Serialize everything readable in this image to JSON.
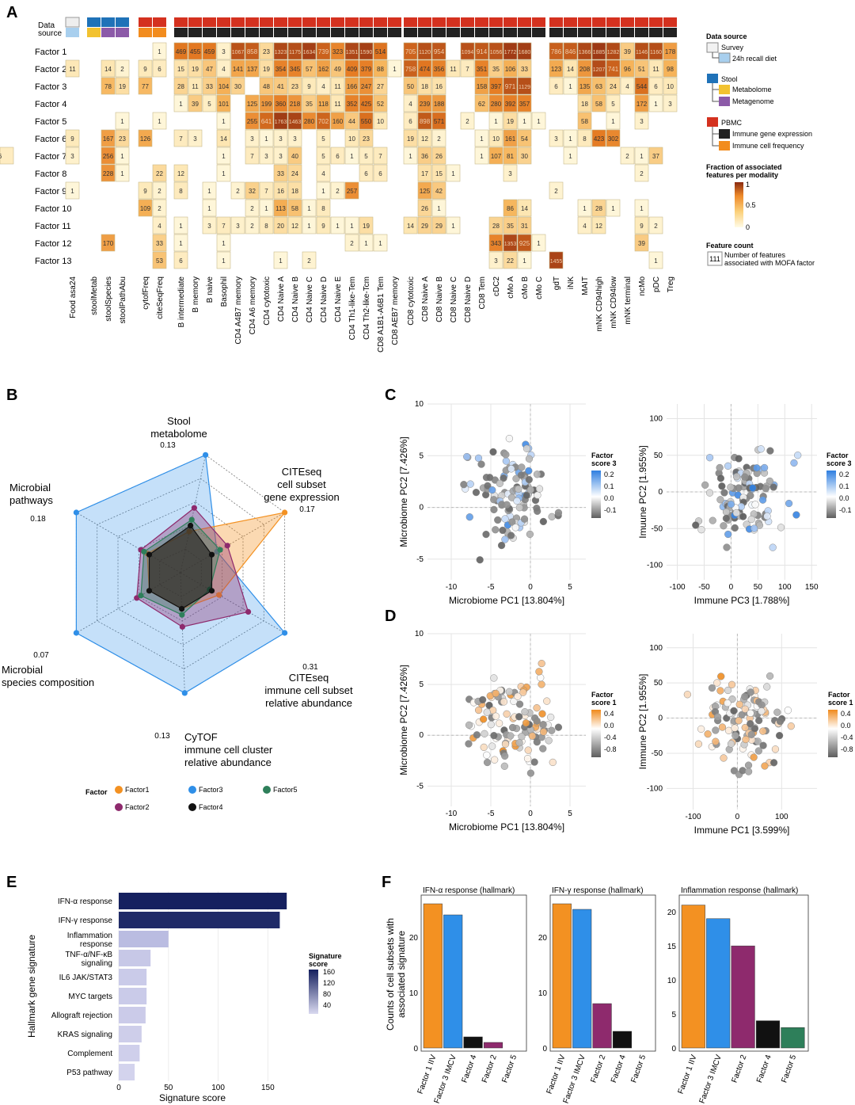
{
  "panels": {
    "a": "A",
    "b": "B",
    "c": "C",
    "d": "D",
    "e": "E",
    "f": "F"
  },
  "colors": {
    "survey": "#e8e8e8",
    "recall": "#a8cfee",
    "stool": "#1f72b8",
    "metabolome": "#f2c230",
    "metagenome": "#8c5aa8",
    "pbmc": "#d4311f",
    "gene": "#222222",
    "freq": "#f28c1e",
    "factor1": "#f39122",
    "factor2": "#8e2a6d",
    "factor3": "#2f8fe8",
    "factor4": "#111111",
    "factor5": "#2e7f5a"
  },
  "panelA": {
    "track_label_data": "Data",
    "track_label_source": "source",
    "factors": [
      "Factor 1",
      "Factor 2",
      "Factor 3",
      "Factor 4",
      "Factor 5",
      "Factor 6",
      "Factor 7",
      "Factor 8",
      "Factor 9",
      "Factor 10",
      "Factor 11",
      "Factor 12",
      "Factor 13"
    ],
    "columns": [
      "Food asa24",
      "stoolMetab",
      "stoolSpecies",
      "stoolPathAbu",
      "cytofFreq",
      "citeSeqFreq",
      "B intermediate",
      "B memory",
      "B naive",
      "Basophil",
      "CD4 A4B7 memory",
      "CD4 A6 memory",
      "CD4 cytotoxic",
      "CD4 Naive A",
      "CD4 Naive B",
      "CD4 Naive C",
      "CD4 Naive D",
      "CD4 Naive E",
      "CD4 Th1-like-Tem",
      "CD4 Th2-like-Tcm",
      "CD8 A1B1-A6B1 Tem",
      "CD8 AEB7 memory",
      "CD8 cytotoxic",
      "CD8 Naive A",
      "CD8 Naive B",
      "CD8 Naive C",
      "CD8 Naive D",
      "CD8 Tem",
      "cDC2",
      "cMo A",
      "cMo B",
      "cMo C",
      "gdT",
      "iNK",
      "MAIT",
      "mNK CD94high",
      "mNK CD94low",
      "mNK terminal",
      "ncMo",
      "pDC",
      "Treg"
    ],
    "rows": [
      [
        null,
        null,
        null,
        null,
        null,
        1,
        469,
        455,
        459,
        3,
        1067,
        858,
        23,
        1323,
        1175,
        1634,
        739,
        323,
        1351,
        1590,
        514,
        null,
        705,
        1120,
        954,
        null,
        1094,
        914,
        1056,
        1772,
        1680,
        null,
        786,
        846,
        1366,
        1885,
        1282,
        39,
        1146,
        1160,
        178
      ],
      [
        11,
        null,
        14,
        2,
        9,
        6,
        15,
        19,
        47,
        4,
        141,
        137,
        19,
        354,
        345,
        57,
        162,
        49,
        409,
        379,
        88,
        1,
        758,
        474,
        356,
        11,
        7,
        351,
        35,
        106,
        33,
        null,
        123,
        14,
        208,
        1207,
        741,
        96,
        51,
        11,
        98
      ],
      [
        null,
        null,
        78,
        19,
        77,
        null,
        28,
        11,
        33,
        104,
        30,
        null,
        48,
        41,
        23,
        9,
        4,
        11,
        166,
        247,
        27,
        null,
        50,
        18,
        16,
        null,
        null,
        158,
        397,
        971,
        1129,
        null,
        6,
        1,
        135,
        63,
        24,
        4,
        544,
        6,
        10
      ],
      [
        null,
        null,
        null,
        null,
        null,
        null,
        1,
        39,
        5,
        101,
        null,
        125,
        199,
        360,
        218,
        35,
        118,
        11,
        352,
        425,
        52,
        null,
        4,
        239,
        188,
        null,
        null,
        62,
        280,
        392,
        357,
        null,
        null,
        null,
        18,
        58,
        5,
        null,
        172,
        1,
        3
      ],
      [
        null,
        null,
        null,
        1,
        null,
        1,
        null,
        null,
        null,
        1,
        null,
        255,
        641,
        1763,
        1463,
        280,
        702,
        160,
        44,
        550,
        10,
        null,
        6,
        898,
        571,
        null,
        2,
        null,
        1,
        19,
        1,
        1,
        null,
        null,
        58,
        null,
        1,
        null,
        3,
        null,
        null
      ],
      [
        9,
        null,
        167,
        23,
        126,
        null,
        7,
        3,
        null,
        14,
        null,
        3,
        1,
        3,
        3,
        null,
        5,
        null,
        10,
        23,
        null,
        null,
        19,
        12,
        2,
        null,
        null,
        1,
        10,
        161,
        54,
        null,
        3,
        1,
        8,
        423,
        302,
        null,
        null,
        null,
        null
      ],
      [
        3,
        null,
        256,
        1,
        null,
        null,
        null,
        null,
        null,
        1,
        null,
        7,
        3,
        3,
        40,
        null,
        5,
        6,
        1,
        5,
        7,
        null,
        1,
        36,
        26,
        null,
        null,
        1,
        107,
        81,
        30,
        null,
        null,
        1,
        null,
        null,
        null,
        2,
        1,
        37,
        null,
        6
      ],
      [
        null,
        null,
        228,
        1,
        null,
        22,
        12,
        null,
        null,
        1,
        null,
        null,
        null,
        33,
        24,
        null,
        4,
        null,
        null,
        6,
        6,
        null,
        null,
        17,
        15,
        1,
        null,
        null,
        null,
        3,
        null,
        null,
        null,
        null,
        null,
        null,
        null,
        null,
        2,
        null,
        null
      ],
      [
        1,
        null,
        null,
        null,
        9,
        2,
        8,
        null,
        1,
        null,
        2,
        32,
        7,
        16,
        18,
        null,
        1,
        2,
        257,
        null,
        null,
        null,
        null,
        125,
        42,
        null,
        null,
        null,
        null,
        null,
        null,
        null,
        2,
        null,
        null,
        null,
        null,
        null,
        null,
        null,
        null
      ],
      [
        null,
        null,
        null,
        null,
        109,
        2,
        null,
        null,
        1,
        null,
        null,
        2,
        1,
        113,
        58,
        1,
        8,
        null,
        null,
        null,
        null,
        null,
        null,
        26,
        1,
        null,
        null,
        null,
        null,
        86,
        14,
        null,
        null,
        null,
        1,
        28,
        1,
        null,
        1,
        null,
        null
      ],
      [
        null,
        null,
        null,
        null,
        null,
        4,
        1,
        null,
        3,
        7,
        3,
        2,
        8,
        20,
        12,
        1,
        9,
        1,
        1,
        19,
        null,
        null,
        14,
        29,
        29,
        1,
        null,
        null,
        28,
        35,
        31,
        null,
        null,
        null,
        4,
        12,
        null,
        null,
        9,
        2,
        null
      ],
      [
        null,
        null,
        170,
        null,
        null,
        33,
        1,
        null,
        null,
        1,
        null,
        null,
        null,
        null,
        null,
        null,
        null,
        null,
        2,
        1,
        1,
        null,
        null,
        null,
        null,
        null,
        null,
        null,
        343,
        1353,
        925,
        1,
        null,
        null,
        null,
        null,
        null,
        null,
        39,
        null,
        null
      ],
      [
        null,
        null,
        null,
        null,
        null,
        53,
        6,
        null,
        null,
        1,
        null,
        null,
        null,
        1,
        null,
        2,
        null,
        null,
        null,
        null,
        null,
        null,
        null,
        null,
        null,
        null,
        null,
        null,
        3,
        22,
        1,
        null,
        1455,
        null,
        null,
        null,
        null,
        null,
        null,
        1,
        null
      ]
    ],
    "legend": {
      "data_source_title": "Data source",
      "survey": "Survey",
      "recall": "24h recall diet",
      "stool": "Stool",
      "metabolome": "Metabolome",
      "metagenome": "Metagenome",
      "pbmc": "PBMC",
      "gene_expr": "Immune gene expression",
      "cell_freq": "Immune cell frequency",
      "fraction_title_1": "Fraction of associated",
      "fraction_title_2": "features per modality",
      "fraction_ticks": [
        "1",
        "0.5",
        "0"
      ],
      "count_title": "Feature count",
      "count_example": "111",
      "count_desc_1": "Number of features",
      "count_desc_2": "associated with MOFA factor"
    }
  },
  "panelB": {
    "axes": [
      {
        "label": [
          "Stool",
          "metabolome"
        ],
        "max": "0.13"
      },
      {
        "label": [
          "CITEseq",
          "cell subset",
          "gene expression"
        ],
        "max": "0.17"
      },
      {
        "label": [
          "CITEseq",
          "immune cell subset",
          "relative abundance"
        ],
        "max": "0.31"
      },
      {
        "label": [
          "CyTOF",
          "immune cell cluster",
          "relative abundance"
        ],
        "max": "0.13"
      },
      {
        "label": [
          "Microbial",
          "species composition"
        ],
        "max": "0.07"
      },
      {
        "label": [
          "Microbial",
          "pathways"
        ],
        "max": "0.18"
      }
    ],
    "legend_title": "Factor",
    "legend": [
      "Factor1",
      "Factor2",
      "Factor3",
      "Factor4",
      "Factor5"
    ]
  },
  "chart_data": [
    {
      "type": "heatmap",
      "title": "",
      "note": "Feature count per factor and data modality (panel A); values in panelA.rows"
    },
    {
      "type": "radar",
      "axes": [
        "Stool metabolome",
        "CITEseq cell subset gene expression",
        "CITEseq immune cell subset relative abundance",
        "CyTOF immune cell cluster relative abundance",
        "Microbial species composition",
        "Microbial pathways"
      ],
      "axis_max": [
        0.13,
        0.17,
        0.31,
        0.13,
        0.07,
        0.18
      ],
      "series": [
        {
          "name": "Factor1",
          "values": [
            0.35,
            1.0,
            0.37,
            0.3,
            0.3,
            0.32
          ]
        },
        {
          "name": "Factor2",
          "values": [
            0.55,
            0.45,
            0.65,
            0.45,
            0.42,
            0.38
          ]
        },
        {
          "name": "Factor3",
          "values": [
            1.0,
            0.35,
            1.0,
            1.0,
            1.0,
            1.0
          ]
        },
        {
          "name": "Factor4",
          "values": [
            0.4,
            0.3,
            0.3,
            0.3,
            0.3,
            0.3
          ]
        },
        {
          "name": "Factor5",
          "values": [
            0.45,
            0.38,
            0.28,
            0.35,
            0.38,
            0.35
          ]
        }
      ]
    },
    {
      "type": "scatter",
      "panel": "C",
      "plots": [
        {
          "xlabel": "Microbiome PC1 [13.804%]",
          "ylabel": "Microbiome PC2 [7.426%]",
          "xlim": [
            -13,
            7
          ],
          "ylim": [
            -7,
            10
          ],
          "xticks": [
            "-10",
            "-5",
            "0",
            "5"
          ],
          "yticks": [
            "-5",
            "0",
            "5",
            "10"
          ]
        },
        {
          "xlabel": "Immune PC3 [1.788%]",
          "ylabel": "Imuune PC2 [1.955%]",
          "xlim": [
            -120,
            160
          ],
          "ylim": [
            -120,
            120
          ],
          "xticks": [
            "-100",
            "-50",
            "0",
            "50",
            "100",
            "150"
          ],
          "yticks": [
            "-100",
            "-50",
            "0",
            "50",
            "100"
          ]
        }
      ],
      "legend_title": [
        "Factor",
        "score 3"
      ],
      "legend_ticks": [
        "0.2",
        "0.1",
        "0.0",
        "-0.1"
      ]
    },
    {
      "type": "scatter",
      "panel": "D",
      "plots": [
        {
          "xlabel": "Microbiome PC1 [13.804%]",
          "ylabel": "Microbiome PC2 [7.426%]",
          "xlim": [
            -13,
            7
          ],
          "ylim": [
            -7,
            10
          ],
          "xticks": [
            "-10",
            "-5",
            "0",
            "5"
          ],
          "yticks": [
            "-5",
            "0",
            "5",
            "10"
          ]
        },
        {
          "xlabel": "Immune PC1 [3.599%]",
          "ylabel": "Immune PC2 [1.955%]",
          "xlim": [
            -160,
            180
          ],
          "ylim": [
            -130,
            120
          ],
          "xticks": [
            "-100",
            "0",
            "100"
          ],
          "yticks": [
            "-100",
            "-50",
            "0",
            "50",
            "100"
          ]
        }
      ],
      "legend_title": [
        "Factor",
        "score 1"
      ],
      "legend_ticks": [
        "0.4",
        "0.0",
        "-0.4",
        "-0.8"
      ]
    },
    {
      "type": "bar",
      "panel": "E",
      "orientation": "horizontal",
      "categories": [
        [
          "IFN-α response"
        ],
        [
          "IFN-γ response"
        ],
        [
          "Inflammation",
          "response"
        ],
        [
          "TNF-α/NF-κB",
          "signaling"
        ],
        [
          "IL6 JAK/STAT3"
        ],
        [
          "MYC targets"
        ],
        [
          "Allograft rejection"
        ],
        [
          "KRAS signaling"
        ],
        [
          "Complement"
        ],
        [
          "P53 pathway"
        ]
      ],
      "values": [
        169,
        162,
        50,
        32,
        28,
        28,
        27,
        23,
        21,
        16
      ],
      "xlabel": "Signature score",
      "ylabel": "Hallmark gene signature",
      "xlim": [
        0,
        180
      ],
      "xticks": [
        "0",
        "50",
        "100",
        "150"
      ],
      "legend_title": [
        "Signature",
        "score"
      ],
      "legend_ticks": [
        "160",
        "120",
        "80",
        "40"
      ]
    },
    {
      "type": "bar",
      "panel": "F",
      "ylabel": [
        "Counts of cell subsets with",
        "associated signature"
      ],
      "subplots": [
        {
          "title": "IFN-α response (hallmark)",
          "categories": [
            "Factor 1 IIV",
            "Factor 3 IMCV",
            "Factor 4",
            "Factor 2",
            "Factor 5"
          ],
          "values": [
            26,
            24,
            2,
            1,
            0
          ],
          "colors": [
            "#f39122",
            "#2f8fe8",
            "#111111",
            "#8e2a6d",
            "#2e7f5a"
          ],
          "ylim": [
            0,
            27
          ],
          "yticks": [
            "0",
            "10",
            "20"
          ]
        },
        {
          "title": "IFN-γ response (hallmark)",
          "categories": [
            "Factor 1 IIV",
            "Factor 3 IMCV",
            "Factor 2",
            "Factor 4",
            "Factor 5"
          ],
          "values": [
            26,
            25,
            8,
            3,
            0
          ],
          "colors": [
            "#f39122",
            "#2f8fe8",
            "#8e2a6d",
            "#111111",
            "#2e7f5a"
          ],
          "ylim": [
            0,
            27
          ],
          "yticks": [
            "0",
            "10",
            "20"
          ]
        },
        {
          "title": "Inflammation response (hallmark)",
          "categories": [
            "Factor 1 IIV",
            "Factor 3 IMCV",
            "Factor 2",
            "Factor 4",
            "Factor 5"
          ],
          "values": [
            21,
            19,
            15,
            4,
            3
          ],
          "colors": [
            "#f39122",
            "#2f8fe8",
            "#8e2a6d",
            "#111111",
            "#2e7f5a"
          ],
          "ylim": [
            0,
            22
          ],
          "yticks": [
            "0",
            "5",
            "10",
            "15",
            "20"
          ]
        }
      ]
    }
  ]
}
